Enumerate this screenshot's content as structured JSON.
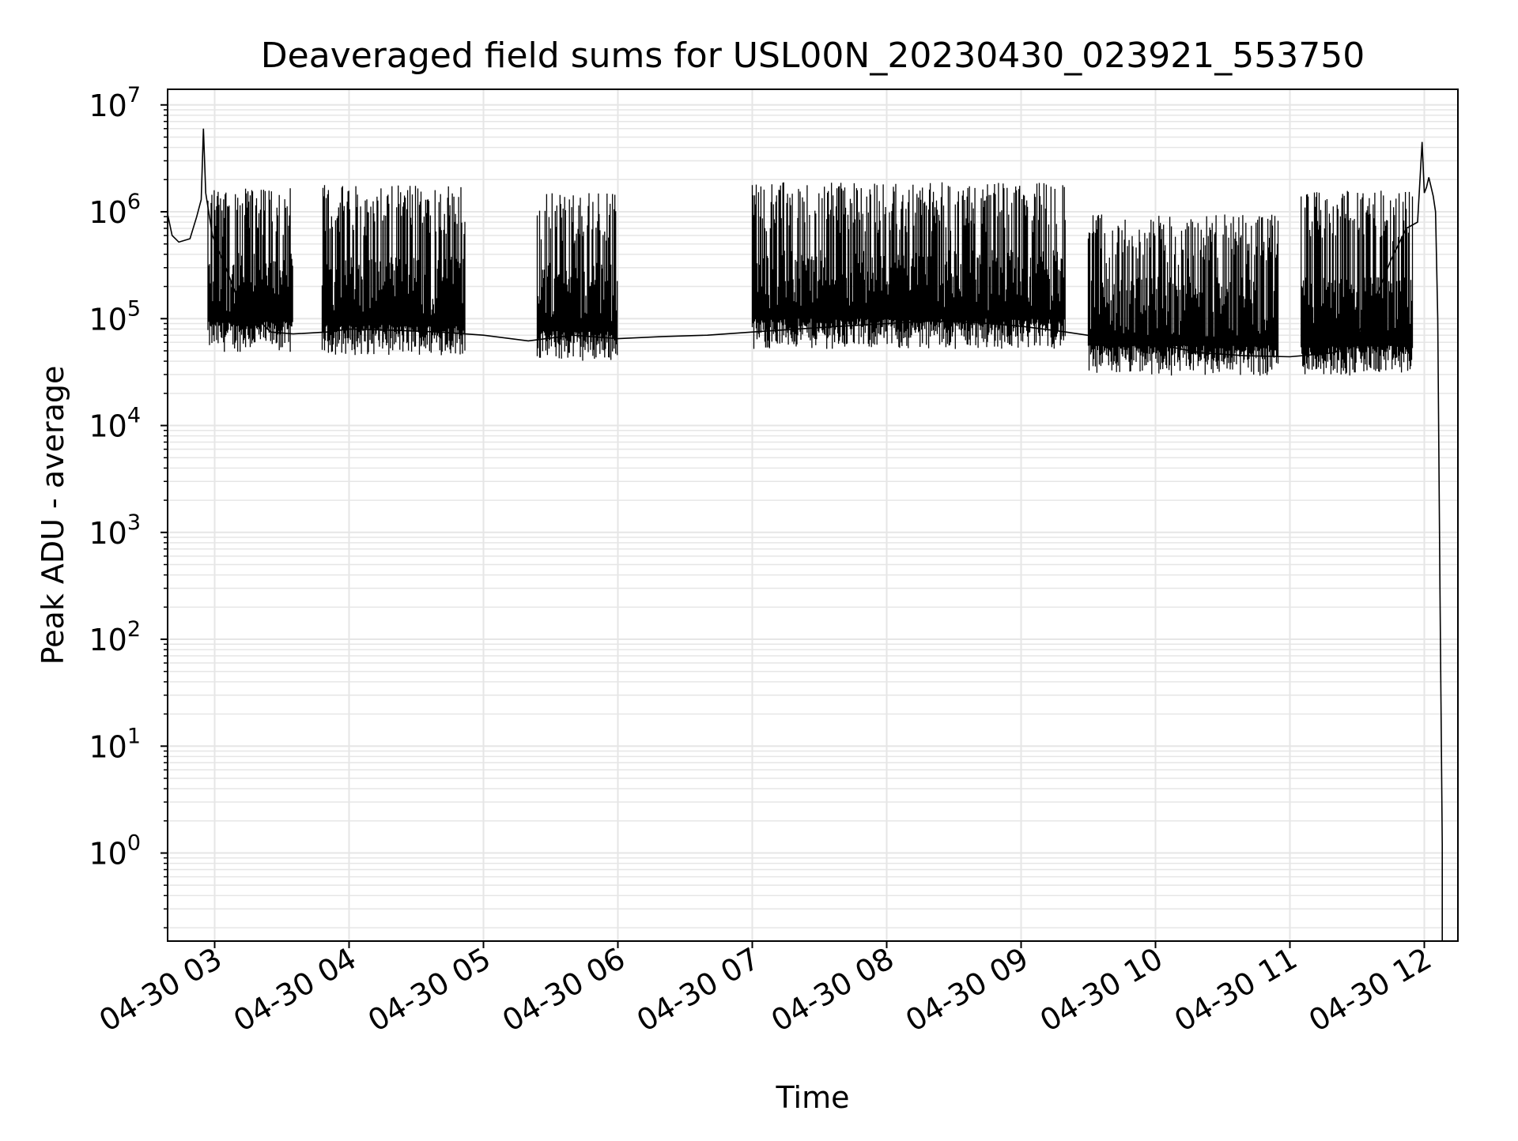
{
  "chart_data": {
    "type": "line",
    "title": "Deaveraged field sums for USL00N_20230430_023921_553750",
    "xlabel": "Time",
    "ylabel": "Peak ADU - average",
    "yscale": "log",
    "grid": true,
    "grid_minor": true,
    "line_color": "#000000",
    "grid_color": "#e6e6e6",
    "xlim": [
      "2023-04-30 02:39",
      "2023-04-30 12:15"
    ],
    "ylim": [
      0.15,
      14000000
    ],
    "x_ticks": [
      {
        "t": "2023-04-30 03:00",
        "label": "04-30 03"
      },
      {
        "t": "2023-04-30 04:00",
        "label": "04-30 04"
      },
      {
        "t": "2023-04-30 05:00",
        "label": "04-30 05"
      },
      {
        "t": "2023-04-30 06:00",
        "label": "04-30 06"
      },
      {
        "t": "2023-04-30 07:00",
        "label": "04-30 07"
      },
      {
        "t": "2023-04-30 08:00",
        "label": "04-30 08"
      },
      {
        "t": "2023-04-30 09:00",
        "label": "04-30 09"
      },
      {
        "t": "2023-04-30 10:00",
        "label": "04-30 10"
      },
      {
        "t": "2023-04-30 11:00",
        "label": "04-30 11"
      },
      {
        "t": "2023-04-30 12:00",
        "label": "04-30 12"
      }
    ],
    "y_ticks": [
      {
        "value": 1,
        "base": "10",
        "exp": "0"
      },
      {
        "value": 10,
        "base": "10",
        "exp": "1"
      },
      {
        "value": 100,
        "base": "10",
        "exp": "2"
      },
      {
        "value": 1000,
        "base": "10",
        "exp": "3"
      },
      {
        "value": 10000,
        "base": "10",
        "exp": "4"
      },
      {
        "value": 100000,
        "base": "10",
        "exp": "5"
      },
      {
        "value": 1000000,
        "base": "10",
        "exp": "6"
      },
      {
        "value": 10000000,
        "base": "10",
        "exp": "7"
      }
    ],
    "series": [
      {
        "values": [
          [
            "2023-04-30 02:39",
            950000
          ],
          [
            "2023-04-30 02:41",
            600000
          ],
          [
            "2023-04-30 02:44",
            520000
          ],
          [
            "2023-04-30 02:49",
            560000
          ],
          [
            "2023-04-30 02:52",
            900000
          ],
          [
            "2023-04-30 02:54",
            1300000
          ],
          [
            "2023-04-30 02:55",
            6000000
          ],
          [
            "2023-04-30 02:56",
            1500000
          ],
          [
            "2023-04-30 02:59",
            600000
          ],
          [
            "2023-04-30 03:05",
            300000
          ],
          [
            "2023-04-30 03:10",
            160000
          ],
          [
            "2023-04-30 03:15",
            110000
          ],
          [
            "2023-04-30 03:20",
            95000
          ],
          [
            "2023-04-30 03:25",
            75000
          ],
          [
            "2023-04-30 03:35",
            72000
          ],
          [
            "2023-04-30 03:50",
            75000
          ],
          [
            "2023-04-30 04:00",
            80000
          ],
          [
            "2023-04-30 04:20",
            78000
          ],
          [
            "2023-04-30 04:40",
            75000
          ],
          [
            "2023-04-30 05:00",
            70000
          ],
          [
            "2023-04-30 05:20",
            62000
          ],
          [
            "2023-04-30 05:40",
            70000
          ],
          [
            "2023-04-30 06:00",
            65000
          ],
          [
            "2023-04-30 06:20",
            68000
          ],
          [
            "2023-04-30 06:40",
            70000
          ],
          [
            "2023-04-30 07:00",
            75000
          ],
          [
            "2023-04-30 07:20",
            80000
          ],
          [
            "2023-04-30 07:40",
            85000
          ],
          [
            "2023-04-30 08:00",
            90000
          ],
          [
            "2023-04-30 08:20",
            95000
          ],
          [
            "2023-04-30 08:40",
            92000
          ],
          [
            "2023-04-30 09:00",
            85000
          ],
          [
            "2023-04-30 09:20",
            75000
          ],
          [
            "2023-04-30 09:40",
            65000
          ],
          [
            "2023-04-30 10:00",
            58000
          ],
          [
            "2023-04-30 10:20",
            48000
          ],
          [
            "2023-04-30 10:40",
            45000
          ],
          [
            "2023-04-30 11:00",
            44000
          ],
          [
            "2023-04-30 11:20",
            48000
          ],
          [
            "2023-04-30 11:30",
            70000
          ],
          [
            "2023-04-30 11:38",
            150000
          ],
          [
            "2023-04-30 11:45",
            350000
          ],
          [
            "2023-04-30 11:52",
            700000
          ],
          [
            "2023-04-30 11:57",
            800000
          ],
          [
            "2023-04-30 11:59",
            4500000
          ],
          [
            "2023-04-30 12:00",
            1500000
          ],
          [
            "2023-04-30 12:01",
            1700000
          ],
          [
            "2023-04-30 12:02",
            2100000
          ],
          [
            "2023-04-30 12:04",
            1400000
          ],
          [
            "2023-04-30 12:05",
            1000000
          ],
          [
            "2023-04-30 12:06",
            100000
          ],
          [
            "2023-04-30 12:07",
            300
          ],
          [
            "2023-04-30 12:08",
            1.2
          ],
          [
            "2023-04-30 12:08",
            0.15
          ]
        ]
      }
    ],
    "spike_regions": [
      {
        "start": "2023-04-30 02:57",
        "end": "2023-04-30 03:35",
        "peak": 1600000,
        "base": 75000
      },
      {
        "start": "2023-04-30 03:48",
        "end": "2023-04-30 04:52",
        "peak": 1700000,
        "base": 70000
      },
      {
        "start": "2023-04-30 05:24",
        "end": "2023-04-30 06:00",
        "peak": 1450000,
        "base": 62000
      },
      {
        "start": "2023-04-30 07:00",
        "end": "2023-04-30 09:20",
        "peak": 1800000,
        "base": 80000
      },
      {
        "start": "2023-04-30 09:30",
        "end": "2023-04-30 10:55",
        "peak": 900000,
        "base": 45000
      },
      {
        "start": "2023-04-30 11:05",
        "end": "2023-04-30 11:55",
        "peak": 1500000,
        "base": 45000
      }
    ]
  }
}
